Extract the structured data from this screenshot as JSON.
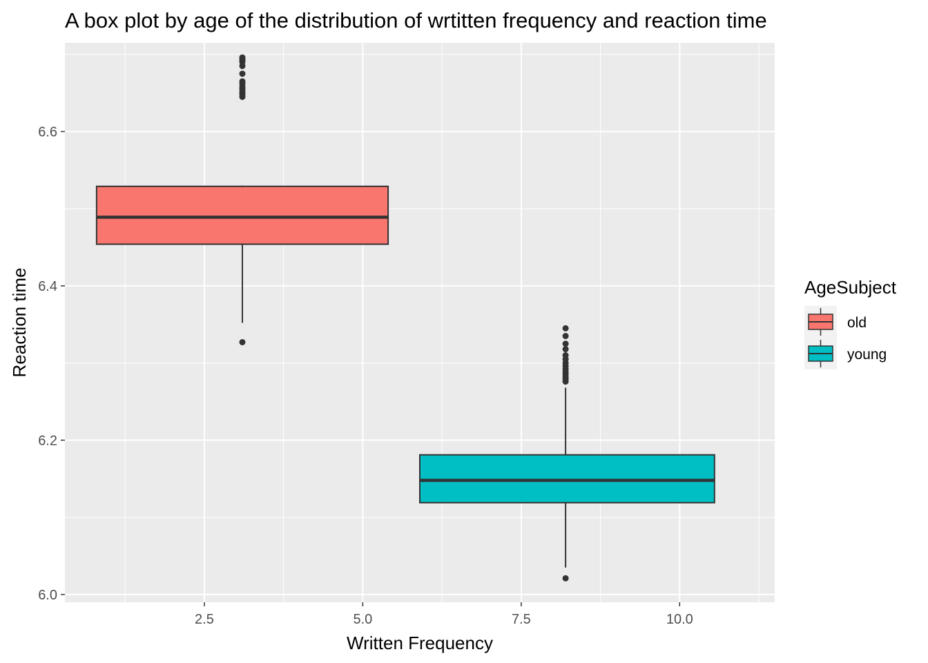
{
  "chart_data": {
    "type": "box",
    "title": "A box plot by age of the distribution of wrtitten frequency and reaction time",
    "xlabel": "Written Frequency",
    "ylabel": "Reaction time",
    "xlim": [
      0.3,
      11.5
    ],
    "ylim": [
      5.99,
      6.715
    ],
    "x_ticks": [
      2.5,
      5.0,
      7.5,
      10.0
    ],
    "x_tick_labels": [
      "2.5",
      "5.0",
      "7.5",
      "10.0"
    ],
    "y_ticks": [
      6.0,
      6.2,
      6.4,
      6.6
    ],
    "y_tick_labels": [
      "6.0",
      "6.2",
      "6.4",
      "6.6"
    ],
    "grid": true,
    "panel_background": "#ebebeb",
    "legend": {
      "title": "AgeSubject",
      "position": "right",
      "entries": [
        {
          "label": "old",
          "color": "#f8766d"
        },
        {
          "label": "young",
          "color": "#00bfc4"
        }
      ]
    },
    "series": [
      {
        "name": "old",
        "color": "#f8766d",
        "x_center": 3.1,
        "x_min": 0.8,
        "x_max": 5.4,
        "whisker_low": 6.352,
        "q1": 6.454,
        "median": 6.489,
        "q3": 6.529,
        "whisker_high": 6.53,
        "outliers": [
          6.327,
          6.645,
          6.648,
          6.65,
          6.652,
          6.655,
          6.658,
          6.662,
          6.665,
          6.675,
          6.685,
          6.69,
          6.692,
          6.694,
          6.696
        ]
      },
      {
        "name": "young",
        "color": "#00bfc4",
        "x_center": 8.2,
        "x_min": 5.9,
        "x_max": 10.55,
        "whisker_low": 6.035,
        "q1": 6.119,
        "median": 6.148,
        "q3": 6.181,
        "whisker_high": 6.268,
        "outliers": [
          6.021,
          6.276,
          6.279,
          6.282,
          6.285,
          6.288,
          6.292,
          6.296,
          6.3,
          6.305,
          6.31,
          6.318,
          6.325,
          6.335,
          6.345
        ]
      }
    ]
  }
}
